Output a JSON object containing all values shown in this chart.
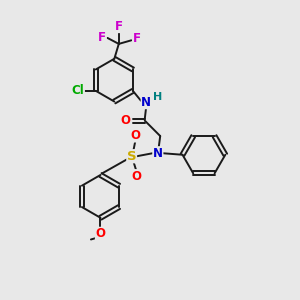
{
  "bg_color": "#e8e8e8",
  "bond_color": "#1a1a1a",
  "bond_width": 1.4,
  "atom_colors": {
    "N": "#0000cc",
    "O": "#ff0000",
    "S": "#ccaa00",
    "F": "#cc00cc",
    "Cl": "#00aa00",
    "H": "#008080"
  },
  "font_size": 8.5,
  "r_ring": 0.72
}
